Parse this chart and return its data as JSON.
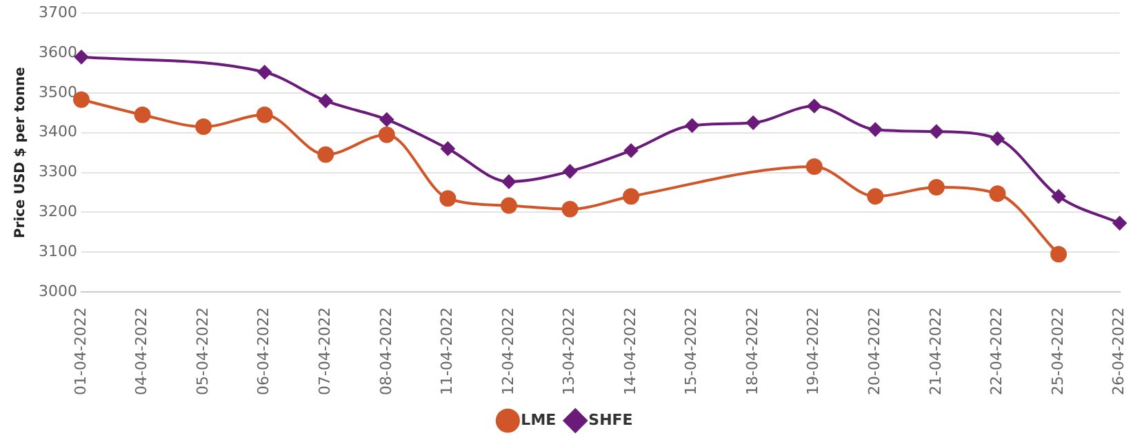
{
  "chart_data": {
    "type": "line",
    "ylabel": "Price USD $ per tonne",
    "categories": [
      "01-04-2022",
      "04-04-2022",
      "05-04-2022",
      "06-04-2022",
      "07-04-2022",
      "08-04-2022",
      "11-04-2022",
      "12-04-2022",
      "13-04-2022",
      "14-04-2022",
      "15-04-2022",
      "18-04-2022",
      "19-04-2022",
      "20-04-2022",
      "21-04-2022",
      "22-04-2022",
      "25-04-2022",
      "26-04-2022"
    ],
    "series": [
      {
        "name": "LME",
        "color": "#d0562a",
        "marker": "circle",
        "values": [
          3483,
          3445,
          3415,
          3445,
          3345,
          3395,
          3235,
          3217,
          3208,
          3240,
          null,
          null,
          3315,
          3240,
          3263,
          3247,
          3095,
          null
        ]
      },
      {
        "name": "SHFE",
        "color": "#6a1b7a",
        "marker": "diamond",
        "values": [
          3590,
          null,
          null,
          3552,
          3480,
          3433,
          3360,
          3277,
          3303,
          3355,
          3418,
          3425,
          3467,
          3408,
          3403,
          3385,
          3240,
          3173
        ]
      }
    ],
    "ylim": [
      3000,
      3700
    ],
    "yticks": [
      3000,
      3100,
      3200,
      3300,
      3400,
      3500,
      3600,
      3700
    ],
    "grid": "y",
    "legend": "bottom"
  }
}
